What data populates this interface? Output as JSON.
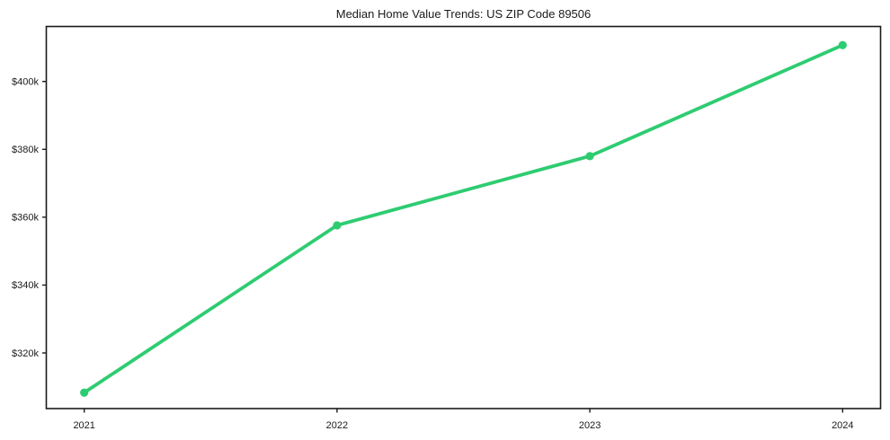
{
  "chart_data": {
    "type": "line",
    "title": "Median Home Value Trends: US ZIP Code 89506",
    "x": [
      2021,
      2022,
      2023,
      2024
    ],
    "x_tick_labels": [
      "2021",
      "2022",
      "2023",
      "2024"
    ],
    "series": [
      {
        "name": "Median Home Value",
        "values": [
          308300,
          357600,
          378000,
          410700
        ]
      }
    ],
    "y_ticks": [
      {
        "value": 320000,
        "label": "$320k"
      },
      {
        "value": 340000,
        "label": "$340k"
      },
      {
        "value": 360000,
        "label": "$360k"
      },
      {
        "value": 380000,
        "label": "$380k"
      },
      {
        "value": 400000,
        "label": "$400k"
      }
    ],
    "xlabel": "",
    "ylabel": "",
    "xlim": [
      2020.85,
      2024.15
    ],
    "ylim": [
      303600,
      416200
    ],
    "grid": false,
    "legend": "none",
    "line_color": "#2ecc71",
    "marker": "circle",
    "axis_color": "#1a1a1a",
    "text_color": "#1a1a1a",
    "background": "#ffffff"
  }
}
